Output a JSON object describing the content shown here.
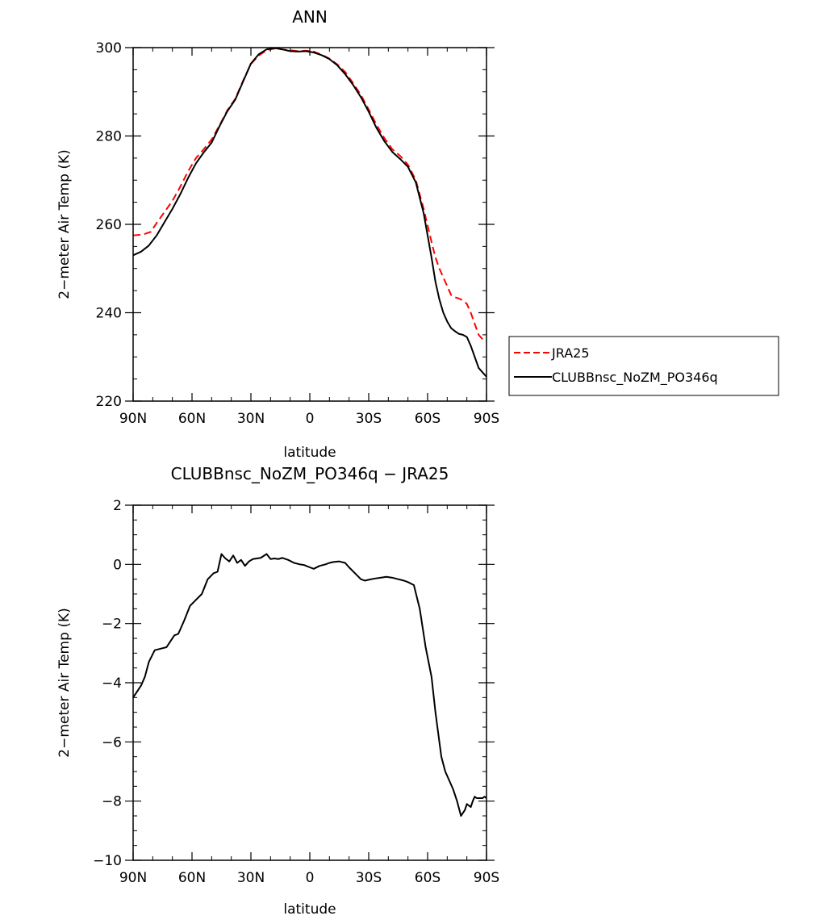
{
  "colors": {
    "jra25": "#ff0000",
    "model": "#000000",
    "axis": "#000000",
    "background": "#ffffff"
  },
  "chart_data": [
    {
      "type": "line",
      "title": "ANN",
      "xlabel": "latitude",
      "ylabel": "2−meter Air Temp (K)",
      "xlim": [
        90,
        -90
      ],
      "ylim": [
        220,
        300
      ],
      "x_ticks": [
        90,
        60,
        30,
        0,
        -30,
        -60,
        -90
      ],
      "x_tick_labels": [
        "90N",
        "60N",
        "30N",
        "0",
        "30S",
        "60S",
        "90S"
      ],
      "y_ticks": [
        220,
        240,
        260,
        280,
        300
      ],
      "y_tick_labels": [
        "220",
        "240",
        "260",
        "280",
        "300"
      ],
      "legend_position": "right, outside plot",
      "series": [
        {
          "name": "JRA25",
          "style": "dashed",
          "color": "#ff0000",
          "x": [
            90,
            85,
            81,
            78,
            74,
            70,
            66,
            62,
            58,
            54,
            50,
            46,
            42,
            38,
            34,
            30,
            26,
            22,
            18,
            14,
            10,
            6,
            2,
            -2,
            -6,
            -10,
            -14,
            -18,
            -22,
            -26,
            -30,
            -34,
            -38,
            -42,
            -46,
            -50,
            -54,
            -58,
            -62,
            -64,
            -66,
            -68,
            -70,
            -72,
            -74,
            -76,
            -78,
            -80,
            -82,
            -84,
            -86,
            -88,
            -90
          ],
          "y": [
            257.5,
            257.7,
            258.3,
            260.3,
            262.8,
            265.3,
            268.5,
            272.0,
            275.0,
            277.0,
            279.2,
            282.4,
            285.8,
            288.4,
            292.5,
            296.3,
            298.2,
            299.4,
            299.8,
            299.6,
            299.4,
            299.2,
            299.3,
            299.1,
            298.4,
            297.5,
            296.2,
            294.5,
            292.0,
            289.3,
            286.0,
            282.5,
            279.5,
            277.0,
            275.5,
            273.5,
            270.0,
            263.5,
            256.0,
            252.5,
            250.0,
            248.0,
            246.0,
            244.0,
            243.5,
            243.2,
            242.8,
            242.0,
            240.0,
            237.5,
            235.0,
            234.0,
            233.5
          ]
        },
        {
          "name": "CLUBBnsc_NoZM_PO346q",
          "style": "solid",
          "color": "#000000",
          "x": [
            90,
            86,
            82,
            78,
            74,
            70,
            66,
            62,
            58,
            54,
            50,
            46,
            42,
            38,
            34,
            30,
            26,
            22,
            18,
            14,
            10,
            6,
            2,
            -2,
            -6,
            -10,
            -14,
            -18,
            -22,
            -26,
            -30,
            -34,
            -38,
            -42,
            -46,
            -50,
            -54,
            -58,
            -60,
            -62,
            -64,
            -66,
            -68,
            -70,
            -72,
            -74,
            -76,
            -78,
            -80,
            -82,
            -84,
            -86,
            -88,
            -90
          ],
          "y": [
            253.0,
            253.8,
            255.2,
            257.5,
            260.5,
            263.5,
            266.8,
            270.5,
            273.8,
            276.3,
            278.5,
            282.2,
            285.6,
            288.2,
            292.3,
            296.4,
            298.5,
            299.6,
            299.9,
            299.6,
            299.2,
            299.1,
            299.2,
            298.9,
            298.3,
            297.4,
            296.0,
            294.0,
            291.6,
            288.8,
            285.5,
            281.8,
            278.8,
            276.4,
            274.8,
            273.0,
            269.5,
            262.5,
            257.5,
            252.5,
            247.0,
            243.0,
            240.0,
            238.0,
            236.5,
            235.8,
            235.2,
            235.0,
            234.5,
            232.5,
            230.0,
            227.5,
            226.5,
            225.5
          ]
        }
      ]
    },
    {
      "type": "line",
      "title": "CLUBBnsc_NoZM_PO346q − JRA25",
      "xlabel": "latitude",
      "ylabel": "2−meter Air Temp (K)",
      "xlim": [
        90,
        -90
      ],
      "ylim": [
        -10,
        2
      ],
      "x_ticks": [
        90,
        60,
        30,
        0,
        -30,
        -60,
        -90
      ],
      "x_tick_labels": [
        "90N",
        "60N",
        "30N",
        "0",
        "30S",
        "60S",
        "90S"
      ],
      "y_ticks": [
        -10,
        -8,
        -6,
        -4,
        -2,
        0,
        2
      ],
      "y_tick_labels": [
        "−10",
        "−8",
        "−6",
        "−4",
        "−2",
        "0",
        "2"
      ],
      "series": [
        {
          "style": "solid",
          "color": "#000000",
          "x": [
            90,
            86,
            84,
            82,
            79,
            76,
            73,
            71,
            69,
            67,
            64,
            61,
            58,
            55,
            52,
            49,
            47,
            45,
            43,
            41,
            39,
            37,
            35,
            33,
            31,
            29,
            27,
            25,
            22,
            20,
            18,
            16,
            14,
            11,
            8,
            5,
            3,
            0,
            -2,
            -5,
            -8,
            -10,
            -12,
            -15,
            -18,
            -20,
            -23,
            -26,
            -28,
            -30,
            -33,
            -36,
            -39,
            -42,
            -45,
            -48,
            -50,
            -53,
            -56,
            -59,
            -62,
            -64,
            -66,
            -67,
            -69,
            -71,
            -73,
            -75,
            -77,
            -79,
            -80,
            -81,
            -82,
            -83,
            -84,
            -85,
            -86,
            -88,
            -89,
            -90
          ],
          "y": [
            -4.5,
            -4.1,
            -3.8,
            -3.3,
            -2.9,
            -2.85,
            -2.8,
            -2.6,
            -2.4,
            -2.35,
            -1.9,
            -1.4,
            -1.2,
            -1.0,
            -0.5,
            -0.3,
            -0.25,
            0.35,
            0.2,
            0.1,
            0.3,
            0.05,
            0.15,
            -0.05,
            0.1,
            0.18,
            0.2,
            0.22,
            0.35,
            0.18,
            0.2,
            0.18,
            0.22,
            0.15,
            0.05,
            0.0,
            -0.02,
            -0.1,
            -0.15,
            -0.05,
            0.0,
            0.05,
            0.08,
            0.1,
            0.05,
            -0.1,
            -0.3,
            -0.5,
            -0.55,
            -0.52,
            -0.48,
            -0.45,
            -0.42,
            -0.45,
            -0.5,
            -0.55,
            -0.6,
            -0.7,
            -1.5,
            -2.8,
            -3.8,
            -5.0,
            -6.0,
            -6.5,
            -7.0,
            -7.3,
            -7.6,
            -8.0,
            -8.5,
            -8.3,
            -8.1,
            -8.15,
            -8.2,
            -8.0,
            -7.85,
            -7.9,
            -7.9,
            -7.9,
            -7.85,
            -7.9
          ]
        }
      ]
    }
  ]
}
